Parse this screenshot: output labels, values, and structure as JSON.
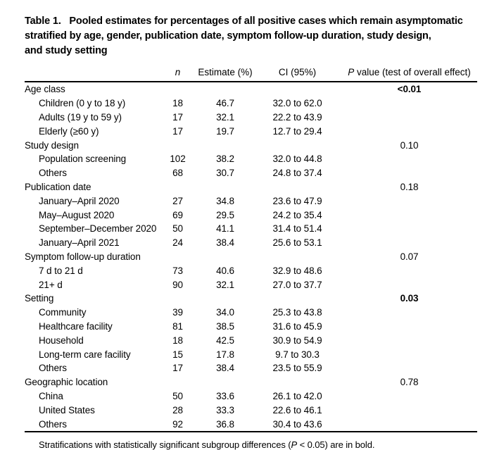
{
  "title": {
    "lines": [
      "Table 1.   Pooled estimates for percentages of all positive cases which remain asymptomatic",
      "stratified by age, gender, publication date, symptom follow-up duration, study design,",
      "and study setting"
    ]
  },
  "columns": {
    "stub": "",
    "n": "n",
    "estimate": "Estimate (%)",
    "ci": "CI (95%)",
    "p_prefix": "P",
    "p_rest": " value (test of overall effect)"
  },
  "sections": [
    {
      "label": "Age class",
      "p": "<0.01",
      "p_bold": true,
      "rows": [
        {
          "label": "Children (0 y to 18 y)",
          "n": "18",
          "estimate": "46.7",
          "ci": "32.0 to 62.0"
        },
        {
          "label": "Adults (19 y to 59 y)",
          "n": "17",
          "estimate": "32.1",
          "ci": "22.2 to 43.9"
        },
        {
          "label": "Elderly (≥60 y)",
          "n": "17",
          "estimate": "19.7",
          "ci": "12.7 to 29.4"
        }
      ]
    },
    {
      "label": "Study design",
      "p": "0.10",
      "p_bold": false,
      "rows": [
        {
          "label": "Population screening",
          "n": "102",
          "estimate": "38.2",
          "ci": "32.0 to 44.8"
        },
        {
          "label": "Others",
          "n": "68",
          "estimate": "30.7",
          "ci": "24.8 to 37.4"
        }
      ]
    },
    {
      "label": "Publication date",
      "p": "0.18",
      "p_bold": false,
      "rows": [
        {
          "label": "January–April 2020",
          "n": "27",
          "estimate": "34.8",
          "ci": "23.6 to 47.9"
        },
        {
          "label": "May–August 2020",
          "n": "69",
          "estimate": "29.5",
          "ci": "24.2 to 35.4"
        },
        {
          "label": "September–December 2020",
          "n": "50",
          "estimate": "41.1",
          "ci": "31.4 to 51.4"
        },
        {
          "label": "January–April 2021",
          "n": "24",
          "estimate": "38.4",
          "ci": "25.6 to 53.1"
        }
      ]
    },
    {
      "label": "Symptom follow-up duration",
      "p": "0.07",
      "p_bold": false,
      "rows": [
        {
          "label": "7 d to 21 d",
          "n": "73",
          "estimate": "40.6",
          "ci": "32.9 to 48.6"
        },
        {
          "label": "21+ d",
          "n": "90",
          "estimate": "32.1",
          "ci": "27.0 to 37.7"
        }
      ]
    },
    {
      "label": "Setting",
      "p": "0.03",
      "p_bold": true,
      "rows": [
        {
          "label": "Community",
          "n": "39",
          "estimate": "34.0",
          "ci": "25.3 to 43.8"
        },
        {
          "label": "Healthcare facility",
          "n": "81",
          "estimate": "38.5",
          "ci": "31.6 to 45.9"
        },
        {
          "label": "Household",
          "n": "18",
          "estimate": "42.5",
          "ci": "30.9 to 54.9"
        },
        {
          "label": "Long-term care facility",
          "n": "15",
          "estimate": "17.8",
          "ci": "9.7 to 30.3"
        },
        {
          "label": "Others",
          "n": "17",
          "estimate": "38.4",
          "ci": "23.5 to 55.9"
        }
      ]
    },
    {
      "label": "Geographic location",
      "p": "0.78",
      "p_bold": false,
      "rows": [
        {
          "label": "China",
          "n": "50",
          "estimate": "33.6",
          "ci": "26.1 to 42.0"
        },
        {
          "label": "United States",
          "n": "28",
          "estimate": "33.3",
          "ci": "22.6 to 46.1"
        },
        {
          "label": "Others",
          "n": "92",
          "estimate": "36.8",
          "ci": "30.4 to 43.6"
        }
      ]
    }
  ],
  "footnote": {
    "pre": "Stratifications with statistically significant subgroup differences (",
    "p": "P",
    "post": " < 0.05) are in bold."
  },
  "colors": {
    "text": "#000000",
    "rule": "#000000",
    "background": "#ffffff"
  }
}
